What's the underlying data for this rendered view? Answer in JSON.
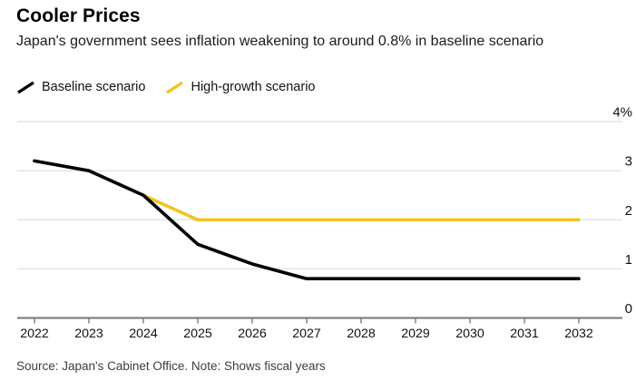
{
  "header": {
    "title": "Cooler Prices",
    "subtitle": "Japan's government sees inflation weakening to around 0.8% in baseline scenario"
  },
  "legend": [
    {
      "label": "Baseline scenario",
      "color": "#000000"
    },
    {
      "label": "High-growth scenario",
      "color": "#F2C323"
    }
  ],
  "chart_data": {
    "type": "line",
    "x": [
      2022,
      2023,
      2024,
      2025,
      2026,
      2027,
      2028,
      2029,
      2030,
      2031,
      2032
    ],
    "x_tick_labels": [
      "2022",
      "2023",
      "2024",
      "2025",
      "2026",
      "2027",
      "2028",
      "2029",
      "2030",
      "2031",
      "2032"
    ],
    "series": [
      {
        "name": "Baseline scenario",
        "color": "#000000",
        "values": [
          3.2,
          3.0,
          2.5,
          1.5,
          1.1,
          0.8,
          0.8,
          0.8,
          0.8,
          0.8,
          0.8
        ]
      },
      {
        "name": "High-growth scenario",
        "color": "#F2C323",
        "values": [
          null,
          null,
          2.5,
          2.0,
          2.0,
          2.0,
          2.0,
          2.0,
          2.0,
          2.0,
          2.0
        ]
      }
    ],
    "title": "Cooler Prices",
    "subtitle": "Japan's government sees inflation weakening to around 0.8% in baseline scenario",
    "xlabel": "",
    "ylabel": "",
    "ylim": [
      0,
      4
    ],
    "y_ticks": [
      0,
      1,
      2,
      3,
      4
    ],
    "y_tick_labels": [
      "0",
      "1",
      "2",
      "3",
      "4%"
    ],
    "grid": "horizontal",
    "legend_position": "top-left"
  },
  "footer": {
    "source": "Source: Japan's Cabinet Office. Note: Shows fiscal years"
  },
  "colors": {
    "background": "#FFFFFF",
    "grid": "#E5E5E5",
    "axis": "#757575",
    "tick": "#6F6F6F",
    "tick_label": "#111111",
    "y_label": "#111111"
  }
}
